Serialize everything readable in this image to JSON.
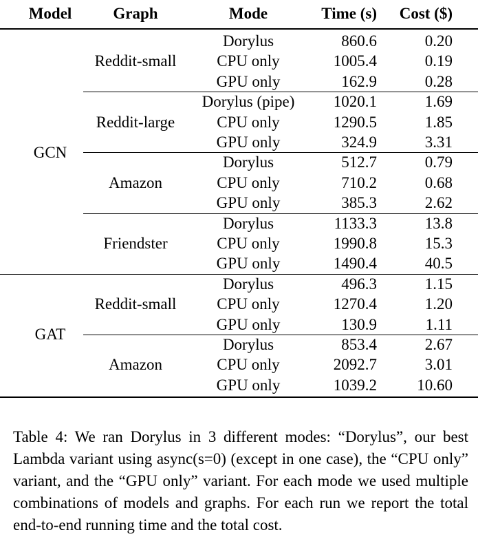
{
  "table": {
    "headers": [
      "Model",
      "Graph",
      "Mode",
      "Time (s)",
      "Cost ($)"
    ],
    "models": [
      {
        "name": "GCN",
        "graphs": [
          {
            "name": "Reddit-small",
            "rows": [
              {
                "mode": "Dorylus",
                "time": "860.6",
                "cost": "0.20"
              },
              {
                "mode": "CPU only",
                "time": "1005.4",
                "cost": "0.19"
              },
              {
                "mode": "GPU only",
                "time": "162.9",
                "cost": "0.28"
              }
            ]
          },
          {
            "name": "Reddit-large",
            "rows": [
              {
                "mode": "Dorylus (pipe)",
                "time": "1020.1",
                "cost": "1.69"
              },
              {
                "mode": "CPU only",
                "time": "1290.5",
                "cost": "1.85"
              },
              {
                "mode": "GPU only",
                "time": "324.9",
                "cost": "3.31"
              }
            ]
          },
          {
            "name": "Amazon",
            "rows": [
              {
                "mode": "Dorylus",
                "time": "512.7",
                "cost": "0.79"
              },
              {
                "mode": "CPU only",
                "time": "710.2",
                "cost": "0.68"
              },
              {
                "mode": "GPU only",
                "time": "385.3",
                "cost": "2.62"
              }
            ]
          },
          {
            "name": "Friendster",
            "rows": [
              {
                "mode": "Dorylus",
                "time": "1133.3",
                "cost": "13.8"
              },
              {
                "mode": "CPU only",
                "time": "1990.8",
                "cost": "15.3"
              },
              {
                "mode": "GPU only",
                "time": "1490.4",
                "cost": "40.5"
              }
            ]
          }
        ]
      },
      {
        "name": "GAT",
        "graphs": [
          {
            "name": "Reddit-small",
            "rows": [
              {
                "mode": "Dorylus",
                "time": "496.3",
                "cost": "1.15"
              },
              {
                "mode": "CPU only",
                "time": "1270.4",
                "cost": "1.20"
              },
              {
                "mode": "GPU only",
                "time": "130.9",
                "cost": "1.11"
              }
            ]
          },
          {
            "name": "Amazon",
            "rows": [
              {
                "mode": "Dorylus",
                "time": "853.4",
                "cost": "2.67"
              },
              {
                "mode": "CPU only",
                "time": "2092.7",
                "cost": "3.01"
              },
              {
                "mode": "GPU only",
                "time": "1039.2",
                "cost": "10.60"
              }
            ]
          }
        ]
      }
    ]
  },
  "caption": "Table 4: We ran Dorylus in 3 different modes: “Dorylus”, our best Lambda variant using async(s=0) (except in one case), the “CPU only” variant, and the “GPU only” variant. For each mode we used multiple combinations of models and graphs. For each run we report the total end-to-end running time and the total cost."
}
